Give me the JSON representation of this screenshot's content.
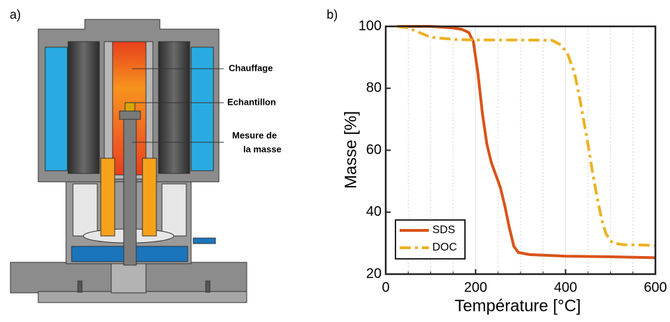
{
  "diagram": {
    "panel_label": "a)",
    "callouts": [
      "Chauffage",
      "Echantillon",
      "Mesure de",
      "la masse"
    ]
  },
  "chart_data": {
    "type": "line",
    "panel_label": "b)",
    "x_label": "Température [°C]",
    "y_label": "Masse [%]",
    "xlim": [
      0,
      600
    ],
    "xticks": [
      0,
      200,
      400,
      600
    ],
    "xminor": [
      50,
      100,
      150,
      250,
      300,
      350,
      450,
      500,
      550
    ],
    "ylim": [
      20,
      100
    ],
    "yticks": [
      20,
      40,
      60,
      80,
      100
    ],
    "grid": true,
    "legend": "lower left",
    "series": [
      {
        "name": "SDS",
        "color": "#d95319",
        "dash": "solid",
        "x": [
          25,
          100,
          150,
          170,
          185,
          195,
          205,
          215,
          225,
          235,
          245,
          255,
          265,
          275,
          285,
          295,
          320,
          400,
          500,
          600
        ],
        "values": [
          100,
          100,
          99.5,
          99,
          98,
          95,
          85,
          72,
          62,
          56,
          52,
          48,
          42,
          35,
          29,
          27,
          26.3,
          25.8,
          25.6,
          25.3
        ]
      },
      {
        "name": "DOC",
        "color": "#edb120",
        "dash": "dashdot",
        "x": [
          25,
          50,
          75,
          100,
          150,
          200,
          300,
          370,
          390,
          405,
          420,
          430,
          440,
          450,
          460,
          470,
          480,
          490,
          505,
          530,
          600
        ],
        "values": [
          100,
          99.5,
          98,
          96.5,
          95.8,
          95.6,
          95.6,
          95.5,
          94,
          91,
          85,
          78,
          70,
          62,
          53,
          45,
          38,
          33,
          30,
          29.5,
          29.3
        ]
      }
    ]
  }
}
